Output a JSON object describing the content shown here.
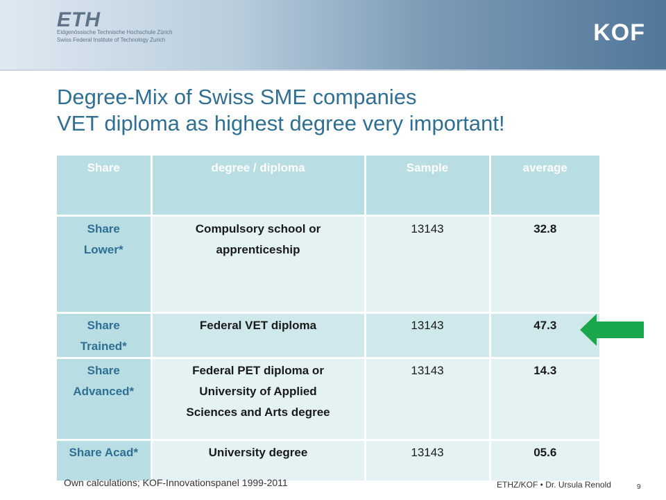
{
  "branding": {
    "eth_logo": "ETH",
    "eth_line1": "Eidgenössische Technische Hochschule Zürich",
    "eth_line2": "Swiss Federal Institute of Technology Zurich",
    "kof_logo": "KOF"
  },
  "title": {
    "line1": "Degree-Mix of Swiss SME companies",
    "line2": "VET diploma as highest degree very important!"
  },
  "table": {
    "headers": [
      "Share",
      "degree / diploma",
      "Sample",
      "average"
    ],
    "rows": [
      {
        "share_line1": "Share",
        "share_line2": "Lower*",
        "degree_line1": "Compulsory school or",
        "degree_line2": "apprenticeship",
        "degree_line3": "",
        "sample": "13143",
        "average": "32.8"
      },
      {
        "share_line1": "Share",
        "share_line2": "Trained*",
        "degree_line1": "Federal VET diploma",
        "degree_line2": "",
        "degree_line3": "",
        "sample": "13143",
        "average": "47.3"
      },
      {
        "share_line1": "Share",
        "share_line2": "Advanced*",
        "degree_line1": "Federal PET diploma or",
        "degree_line2": "University of Applied",
        "degree_line3": "Sciences and Arts degree",
        "sample": "13143",
        "average": "14.3"
      },
      {
        "share_line1": "Share Acad*",
        "share_line2": "",
        "degree_line1": "University degree",
        "degree_line2": "",
        "degree_line3": "",
        "sample": "13143",
        "average": "05.6"
      }
    ]
  },
  "arrow_color": "#1aa64a",
  "source": "Own calculations; KOF-Innovationspanel 1999-2011",
  "footer": {
    "author": "ETHZ/KOF • Dr. Ursula Renold",
    "page": "9"
  }
}
